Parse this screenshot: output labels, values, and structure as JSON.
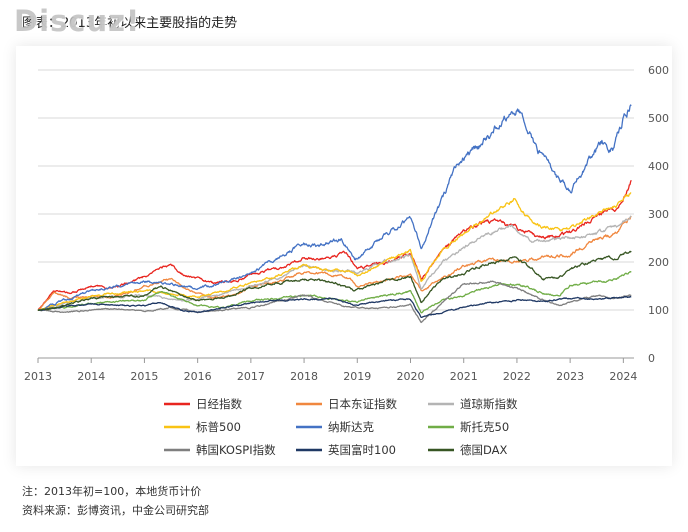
{
  "watermark": "Discuz!",
  "title": "图表：2013年初以来主要股指的走势",
  "notes": {
    "note": "注：2013年初=100，本地货币计价",
    "source": "资料来源：彭博资讯，中金公司研究部"
  },
  "chart_data": {
    "type": "line",
    "x_ticks": [
      "2013",
      "2014",
      "2015",
      "2016",
      "2017",
      "2018",
      "2019",
      "2020",
      "2021",
      "2022",
      "2023",
      "2024"
    ],
    "xlim": [
      2013.0,
      2024.2
    ],
    "y_ticks": [
      "0",
      "100",
      "200",
      "300",
      "400",
      "500",
      "600"
    ],
    "ylim": [
      0,
      600
    ],
    "y_axis_position": "right",
    "grid": "horizontal",
    "legend_position": "bottom",
    "series": [
      {
        "name": "日经指数",
        "color": "#e8251f",
        "noise": 0.01,
        "points": [
          [
            2013.0,
            100
          ],
          [
            2013.3,
            140
          ],
          [
            2013.6,
            135
          ],
          [
            2014.0,
            150
          ],
          [
            2014.4,
            145
          ],
          [
            2014.8,
            160
          ],
          [
            2015.0,
            170
          ],
          [
            2015.5,
            195
          ],
          [
            2015.7,
            175
          ],
          [
            2016.0,
            165
          ],
          [
            2016.3,
            155
          ],
          [
            2016.8,
            165
          ],
          [
            2017.0,
            175
          ],
          [
            2017.5,
            185
          ],
          [
            2018.0,
            210
          ],
          [
            2018.4,
            205
          ],
          [
            2018.8,
            220
          ],
          [
            2019.0,
            185
          ],
          [
            2019.5,
            200
          ],
          [
            2020.0,
            220
          ],
          [
            2020.2,
            165
          ],
          [
            2020.5,
            210
          ],
          [
            2021.0,
            265
          ],
          [
            2021.3,
            280
          ],
          [
            2021.7,
            285
          ],
          [
            2022.0,
            270
          ],
          [
            2022.5,
            250
          ],
          [
            2023.0,
            260
          ],
          [
            2023.5,
            300
          ],
          [
            2023.9,
            315
          ],
          [
            2024.1,
            355
          ],
          [
            2024.15,
            365
          ]
        ]
      },
      {
        "name": "日本东证指数",
        "color": "#f0873f",
        "noise": 0.01,
        "points": [
          [
            2013.0,
            100
          ],
          [
            2013.3,
            135
          ],
          [
            2013.6,
            125
          ],
          [
            2014.0,
            130
          ],
          [
            2014.4,
            125
          ],
          [
            2014.8,
            140
          ],
          [
            2015.0,
            150
          ],
          [
            2015.5,
            165
          ],
          [
            2015.7,
            150
          ],
          [
            2016.0,
            135
          ],
          [
            2016.3,
            125
          ],
          [
            2016.8,
            135
          ],
          [
            2017.0,
            150
          ],
          [
            2017.5,
            160
          ],
          [
            2018.0,
            180
          ],
          [
            2018.4,
            175
          ],
          [
            2018.8,
            170
          ],
          [
            2019.0,
            150
          ],
          [
            2019.5,
            160
          ],
          [
            2020.0,
            175
          ],
          [
            2020.2,
            140
          ],
          [
            2020.5,
            160
          ],
          [
            2021.0,
            190
          ],
          [
            2021.5,
            205
          ],
          [
            2022.0,
            200
          ],
          [
            2022.5,
            210
          ],
          [
            2023.0,
            215
          ],
          [
            2023.5,
            250
          ],
          [
            2023.9,
            260
          ],
          [
            2024.15,
            295
          ]
        ]
      },
      {
        "name": "道琼斯指数",
        "color": "#b4b4b4",
        "noise": 0.009,
        "points": [
          [
            2013.0,
            100
          ],
          [
            2013.5,
            115
          ],
          [
            2014.0,
            125
          ],
          [
            2014.5,
            128
          ],
          [
            2015.0,
            132
          ],
          [
            2015.7,
            120
          ],
          [
            2016.0,
            122
          ],
          [
            2016.5,
            135
          ],
          [
            2017.0,
            150
          ],
          [
            2017.6,
            170
          ],
          [
            2018.0,
            195
          ],
          [
            2018.3,
            185
          ],
          [
            2018.9,
            180
          ],
          [
            2019.0,
            175
          ],
          [
            2019.5,
            200
          ],
          [
            2020.0,
            215
          ],
          [
            2020.2,
            145
          ],
          [
            2020.6,
            200
          ],
          [
            2021.0,
            230
          ],
          [
            2021.5,
            260
          ],
          [
            2021.9,
            275
          ],
          [
            2022.3,
            240
          ],
          [
            2022.8,
            250
          ],
          [
            2023.0,
            250
          ],
          [
            2023.5,
            260
          ],
          [
            2023.9,
            275
          ],
          [
            2024.15,
            295
          ]
        ]
      },
      {
        "name": "标普500",
        "color": "#f9c314",
        "noise": 0.009,
        "points": [
          [
            2013.0,
            100
          ],
          [
            2013.5,
            115
          ],
          [
            2014.0,
            128
          ],
          [
            2014.5,
            135
          ],
          [
            2015.0,
            140
          ],
          [
            2015.7,
            130
          ],
          [
            2016.0,
            128
          ],
          [
            2016.5,
            140
          ],
          [
            2017.0,
            155
          ],
          [
            2017.6,
            175
          ],
          [
            2018.0,
            195
          ],
          [
            2018.3,
            185
          ],
          [
            2018.9,
            180
          ],
          [
            2019.0,
            170
          ],
          [
            2019.5,
            200
          ],
          [
            2020.0,
            225
          ],
          [
            2020.2,
            160
          ],
          [
            2020.6,
            225
          ],
          [
            2021.0,
            260
          ],
          [
            2021.5,
            300
          ],
          [
            2021.95,
            330
          ],
          [
            2022.3,
            280
          ],
          [
            2022.8,
            265
          ],
          [
            2023.0,
            270
          ],
          [
            2023.5,
            300
          ],
          [
            2023.9,
            320
          ],
          [
            2024.15,
            345
          ]
        ]
      },
      {
        "name": "纳斯达克",
        "color": "#4472c4",
        "noise": 0.012,
        "points": [
          [
            2013.0,
            100
          ],
          [
            2013.5,
            120
          ],
          [
            2014.0,
            140
          ],
          [
            2014.5,
            150
          ],
          [
            2015.0,
            160
          ],
          [
            2015.7,
            150
          ],
          [
            2016.0,
            145
          ],
          [
            2016.5,
            160
          ],
          [
            2017.0,
            175
          ],
          [
            2017.6,
            215
          ],
          [
            2018.0,
            240
          ],
          [
            2018.3,
            235
          ],
          [
            2018.7,
            250
          ],
          [
            2018.95,
            205
          ],
          [
            2019.5,
            255
          ],
          [
            2020.0,
            290
          ],
          [
            2020.2,
            230
          ],
          [
            2020.6,
            330
          ],
          [
            2020.9,
            410
          ],
          [
            2021.3,
            440
          ],
          [
            2021.6,
            480
          ],
          [
            2021.9,
            520
          ],
          [
            2022.05,
            515
          ],
          [
            2022.4,
            430
          ],
          [
            2022.8,
            370
          ],
          [
            2023.0,
            350
          ],
          [
            2023.3,
            400
          ],
          [
            2023.6,
            450
          ],
          [
            2023.8,
            430
          ],
          [
            2024.0,
            500
          ],
          [
            2024.15,
            530
          ]
        ]
      },
      {
        "name": "斯托克50",
        "color": "#70ad47",
        "noise": 0.01,
        "points": [
          [
            2013.0,
            100
          ],
          [
            2013.5,
            105
          ],
          [
            2014.0,
            115
          ],
          [
            2014.5,
            118
          ],
          [
            2015.0,
            120
          ],
          [
            2015.3,
            140
          ],
          [
            2015.7,
            120
          ],
          [
            2016.0,
            110
          ],
          [
            2016.5,
            105
          ],
          [
            2017.0,
            120
          ],
          [
            2017.5,
            125
          ],
          [
            2018.0,
            130
          ],
          [
            2018.5,
            125
          ],
          [
            2018.95,
            115
          ],
          [
            2019.5,
            130
          ],
          [
            2020.0,
            140
          ],
          [
            2020.2,
            95
          ],
          [
            2020.6,
            120
          ],
          [
            2021.0,
            130
          ],
          [
            2021.5,
            150
          ],
          [
            2022.0,
            155
          ],
          [
            2022.5,
            135
          ],
          [
            2022.8,
            130
          ],
          [
            2023.0,
            150
          ],
          [
            2023.5,
            160
          ],
          [
            2023.9,
            165
          ],
          [
            2024.15,
            180
          ]
        ]
      },
      {
        "name": "韩国KOSPI指数",
        "color": "#7f7f7f",
        "noise": 0.009,
        "points": [
          [
            2013.0,
            100
          ],
          [
            2013.5,
            95
          ],
          [
            2014.0,
            100
          ],
          [
            2014.5,
            102
          ],
          [
            2015.0,
            98
          ],
          [
            2015.5,
            105
          ],
          [
            2016.0,
            95
          ],
          [
            2016.5,
            100
          ],
          [
            2017.0,
            105
          ],
          [
            2017.6,
            120
          ],
          [
            2018.0,
            130
          ],
          [
            2018.5,
            115
          ],
          [
            2018.9,
            105
          ],
          [
            2019.5,
            105
          ],
          [
            2020.0,
            110
          ],
          [
            2020.2,
            75
          ],
          [
            2020.6,
            115
          ],
          [
            2021.0,
            155
          ],
          [
            2021.5,
            160
          ],
          [
            2022.0,
            145
          ],
          [
            2022.5,
            120
          ],
          [
            2022.8,
            110
          ],
          [
            2023.0,
            118
          ],
          [
            2023.5,
            130
          ],
          [
            2023.9,
            125
          ],
          [
            2024.15,
            130
          ]
        ]
      },
      {
        "name": "英国富时100",
        "color": "#1f3864",
        "noise": 0.008,
        "points": [
          [
            2013.0,
            100
          ],
          [
            2013.5,
            108
          ],
          [
            2014.0,
            112
          ],
          [
            2014.5,
            110
          ],
          [
            2015.0,
            108
          ],
          [
            2015.3,
            115
          ],
          [
            2015.7,
            100
          ],
          [
            2016.0,
            95
          ],
          [
            2016.5,
            105
          ],
          [
            2017.0,
            115
          ],
          [
            2017.5,
            120
          ],
          [
            2018.0,
            122
          ],
          [
            2018.5,
            125
          ],
          [
            2018.95,
            110
          ],
          [
            2019.5,
            120
          ],
          [
            2020.0,
            122
          ],
          [
            2020.2,
            85
          ],
          [
            2020.6,
            95
          ],
          [
            2021.0,
            105
          ],
          [
            2021.5,
            115
          ],
          [
            2022.0,
            120
          ],
          [
            2022.5,
            118
          ],
          [
            2023.0,
            125
          ],
          [
            2023.5,
            122
          ],
          [
            2023.9,
            125
          ],
          [
            2024.15,
            128
          ]
        ]
      },
      {
        "name": "德国DAX",
        "color": "#375623",
        "noise": 0.01,
        "points": [
          [
            2013.0,
            100
          ],
          [
            2013.5,
            110
          ],
          [
            2014.0,
            125
          ],
          [
            2014.5,
            128
          ],
          [
            2015.0,
            130
          ],
          [
            2015.3,
            150
          ],
          [
            2015.7,
            130
          ],
          [
            2016.0,
            120
          ],
          [
            2016.5,
            125
          ],
          [
            2017.0,
            145
          ],
          [
            2017.5,
            155
          ],
          [
            2018.0,
            165
          ],
          [
            2018.5,
            160
          ],
          [
            2018.95,
            140
          ],
          [
            2019.5,
            160
          ],
          [
            2020.0,
            170
          ],
          [
            2020.2,
            115
          ],
          [
            2020.6,
            165
          ],
          [
            2021.0,
            175
          ],
          [
            2021.5,
            200
          ],
          [
            2022.0,
            210
          ],
          [
            2022.5,
            165
          ],
          [
            2022.8,
            170
          ],
          [
            2023.0,
            185
          ],
          [
            2023.5,
            205
          ],
          [
            2023.9,
            210
          ],
          [
            2024.15,
            225
          ]
        ]
      }
    ]
  }
}
